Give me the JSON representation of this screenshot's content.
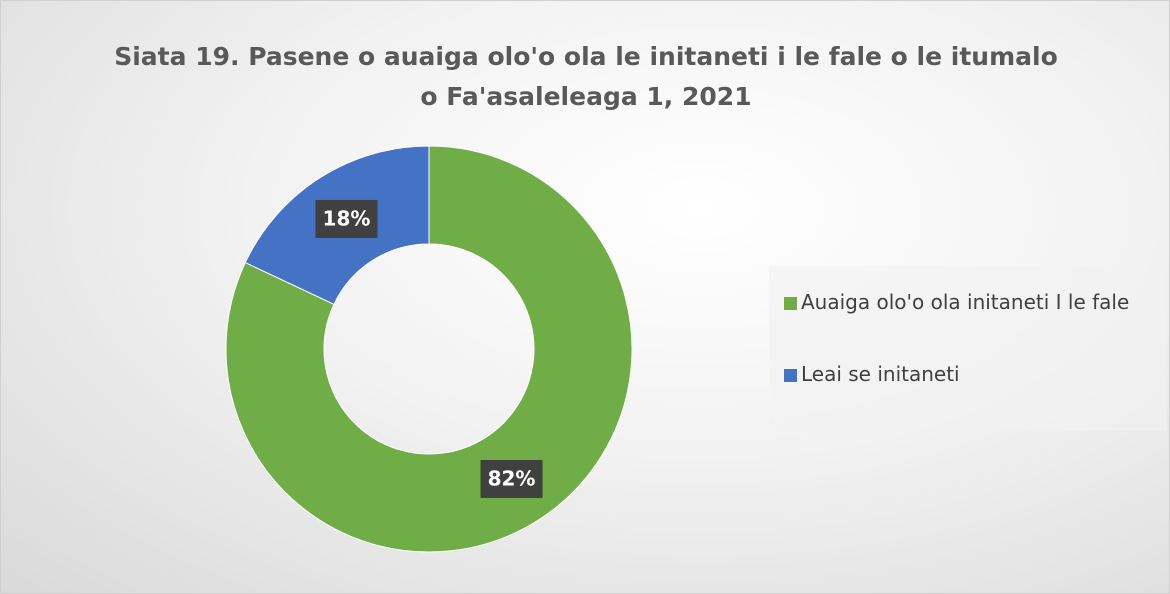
{
  "chart_data": {
    "type": "donut",
    "title": "Siata 19. Pasene o auaiga olo'o ola le initaneti i le fale o le itumalo o Fa'asaleleaga 1, 2021",
    "categories": [
      "Auaiga olo'o ola initaneti I le fale",
      "Leai se initaneti"
    ],
    "values": [
      82,
      18
    ],
    "value_labels": [
      "82%",
      "18%"
    ],
    "colors": [
      "#70ad47",
      "#4472c4"
    ],
    "legend": "right"
  }
}
